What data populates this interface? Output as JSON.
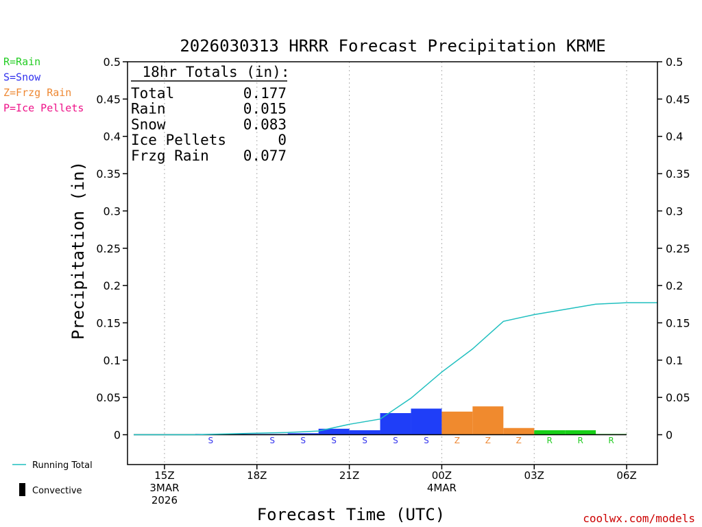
{
  "chart_data": {
    "type": "bar",
    "title": "2026030313 HRRR Forecast Precipitation KRME",
    "xlabel": "Forecast Time (UTC)",
    "ylabel": "Precipitation (in)",
    "ylim": [
      -0.04,
      0.5
    ],
    "yticks": [
      0,
      0.05,
      0.1,
      0.15,
      0.2,
      0.25,
      0.3,
      0.35,
      0.4,
      0.45,
      0.5
    ],
    "ytick_labels": [
      "0",
      "0.05",
      "0.1",
      "0.15",
      "0.2",
      "0.25",
      "0.3",
      "0.35",
      "0.4",
      "0.45",
      "0.5"
    ],
    "xlim": [
      13.8,
      31
    ],
    "time_ticks": [
      {
        "hour": 15,
        "lines": [
          "15Z",
          "3MAR",
          "2026"
        ]
      },
      {
        "hour": 18,
        "lines": [
          "18Z"
        ]
      },
      {
        "hour": 21,
        "lines": [
          "21Z"
        ]
      },
      {
        "hour": 24,
        "lines": [
          "00Z",
          "4MAR"
        ]
      },
      {
        "hour": 27,
        "lines": [
          "03Z"
        ]
      },
      {
        "hour": 30,
        "lines": [
          "06Z"
        ]
      }
    ],
    "hours": [
      14,
      15,
      16,
      17,
      18,
      19,
      20,
      21,
      22,
      23,
      24,
      25,
      26,
      27,
      28,
      29,
      30
    ],
    "precip_type": [
      "",
      "",
      "",
      "S",
      "",
      "S",
      "S",
      "S",
      "S",
      "S",
      "S",
      "Z",
      "Z",
      "Z",
      "R",
      "R",
      "R"
    ],
    "values": [
      0,
      0,
      0,
      0.001,
      0.001,
      0.001,
      0.002,
      0.008,
      0.006,
      0.029,
      0.035,
      0.031,
      0.038,
      0.009,
      0.006,
      0.006,
      0.001
    ],
    "running_total_x": [
      14,
      15,
      16,
      17,
      18,
      19,
      20,
      21,
      22,
      23,
      24,
      25,
      26,
      27,
      28,
      29,
      30,
      31
    ],
    "running_total": [
      0,
      0,
      0,
      0.001,
      0.002,
      0.003,
      0.005,
      0.014,
      0.021,
      0.049,
      0.084,
      0.115,
      0.152,
      0.161,
      0.168,
      0.175,
      0.177,
      0.177
    ],
    "totals_box": {
      "header": "18hr Totals (in):",
      "rows": [
        {
          "label": "Total",
          "value": "0.177"
        },
        {
          "label": "Rain",
          "value": "0.015"
        },
        {
          "label": "Snow",
          "value": "0.083"
        },
        {
          "label": "Ice Pellets",
          "value": "0"
        },
        {
          "label": "Frzg Rain",
          "value": "0.077"
        }
      ]
    },
    "type_legend": [
      {
        "code": "R",
        "text": "R=Rain",
        "color": "#22cc22"
      },
      {
        "code": "S",
        "text": "S=Snow",
        "color": "#3333ee"
      },
      {
        "code": "Z",
        "text": "Z=Frzg Rain",
        "color": "#ee8833"
      },
      {
        "code": "P",
        "text": "P=Ice Pellets",
        "color": "#ee1188"
      }
    ],
    "bar_colors": {
      "S": "#1f3ef8",
      "Z": "#f08a2e",
      "R": "#18d018",
      "P": "#ee1188",
      "": "#1f3ef8"
    },
    "line_legend": "Running Total",
    "line_color": "#1fbfbf",
    "convective_legend": "Convective",
    "credit": "coolwx.com/models"
  }
}
